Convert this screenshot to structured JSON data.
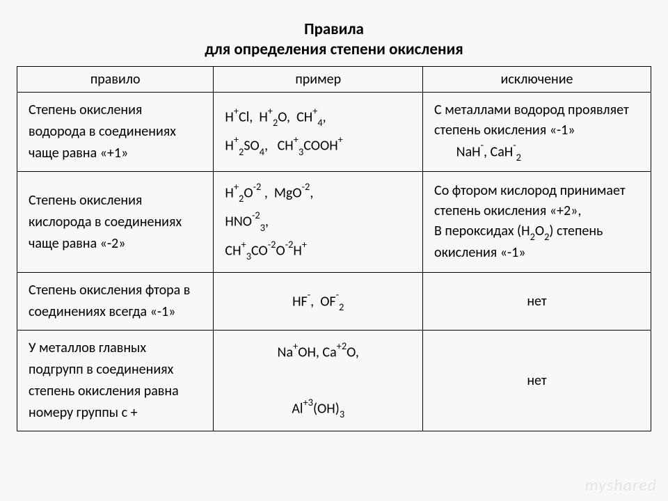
{
  "title_line1": "Правила",
  "title_line2": "для определения степени окисления",
  "title_fontsize": 23,
  "body_fontsize": 20,
  "columns": {
    "rule": "правило",
    "example": "пример",
    "exception": "исключение"
  },
  "rows": [
    {
      "rule": "Степень окисления водорода в соединениях чаще равна «+1»",
      "example_html": "H<span class='sup'>+</span>Cl, &nbsp;H<span class='sup'>+</span><span class='sub'>2</span>O, &nbsp;CH<span class='sup'>+</span><span class='sub'>4</span>,<br>H<span class='sup'>+</span><span class='sub'>2</span>SO<span class='sub'>4</span>, &nbsp;&nbsp;CH<span class='sup'>+</span><span class='sub'>3</span>COOH<span class='sup'>+</span>",
      "exception_html": "С металлами водород проявляет степень окисления «-1»<br>&nbsp;&nbsp;&nbsp;&nbsp;&nbsp;&nbsp;&nbsp;NaH<span class='sup'>-</span>, CaH<span class='sup'>-</span><span class='sub'>2</span>"
    },
    {
      "rule": "Степень окисления кислорода в соединениях чаще равна «-2»",
      "example_html": "H<span class='sup'>+</span><span class='sub'>2</span>O<span class='sup'>-2</span> , &nbsp;MgO<span class='sup'>-2</span>,<br>HNO<span class='sup'>-2</span><span class='sub'>3</span>,<br>CH<span class='sup'>+</span><span class='sub'>3</span>CO<span class='sup'>-2</span>O<span class='sup'>-2</span>H<span class='sup'>+</span>",
      "exception_html": "Со фтором кислород принимает степень окисления «+2»,<br>В пероксидах (H<span class='sub'>2</span>O<span class='sub'>2</span>) степень окисления «-1»"
    },
    {
      "rule": "Степень окисления фтора в соединениях всегда «-1»",
      "example_html": "HF<span class='sup'>-</span>, &nbsp;OF<span class='sup'>-</span><span class='sub'>2</span>",
      "exception_html": "нет",
      "example_center": true,
      "exception_center": true
    },
    {
      "rule": "У металлов главных подгрупп в соединениях степень окисления равна номеру группы с +",
      "example_html": "Na<span class='sup'>+</span>OH, Ca<span class='sup'>+2</span>O,<br><br>Al<span class='sup'>+3</span>(OH)<span class='sub'>3</span>",
      "exception_html": "нет",
      "example_center": true,
      "exception_center": true
    }
  ],
  "watermark": "myshared",
  "colors": {
    "bg": "#f8f9f7",
    "text": "#000000",
    "border": "#000000"
  }
}
